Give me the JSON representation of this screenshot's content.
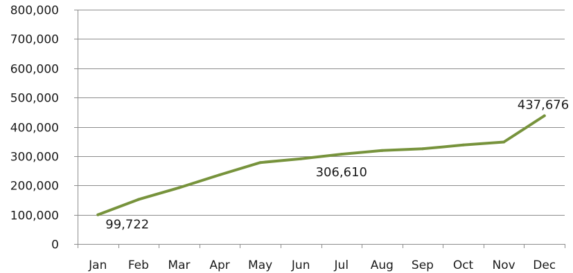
{
  "chart_data": {
    "type": "line",
    "title": "",
    "xlabel": "",
    "ylabel": "",
    "categories": [
      "Jan",
      "Feb",
      "Mar",
      "Apr",
      "May",
      "Jun",
      "Jul",
      "Aug",
      "Sep",
      "Oct",
      "Nov",
      "Dec"
    ],
    "series": [
      {
        "values": [
          99722,
          152000,
          192000,
          236000,
          278000,
          291000,
          306610,
          319000,
          325000,
          338000,
          348000,
          437676
        ],
        "color": "#77933c"
      }
    ],
    "ylim": [
      0,
      800000
    ],
    "yticks": [
      0,
      100000,
      200000,
      300000,
      400000,
      500000,
      600000,
      700000,
      800000
    ],
    "ytick_labels": [
      "0",
      "100,000",
      "200,000",
      "300,000",
      "400,000",
      "500,000",
      "600,000",
      "700,000",
      "800,000"
    ],
    "data_labels": [
      {
        "category": "Jan",
        "text": "99,722",
        "position": "below-right"
      },
      {
        "category": "Jul",
        "text": "306,610",
        "position": "below"
      },
      {
        "category": "Dec",
        "text": "437,676",
        "position": "above"
      }
    ],
    "grid": true,
    "legend": "none"
  }
}
